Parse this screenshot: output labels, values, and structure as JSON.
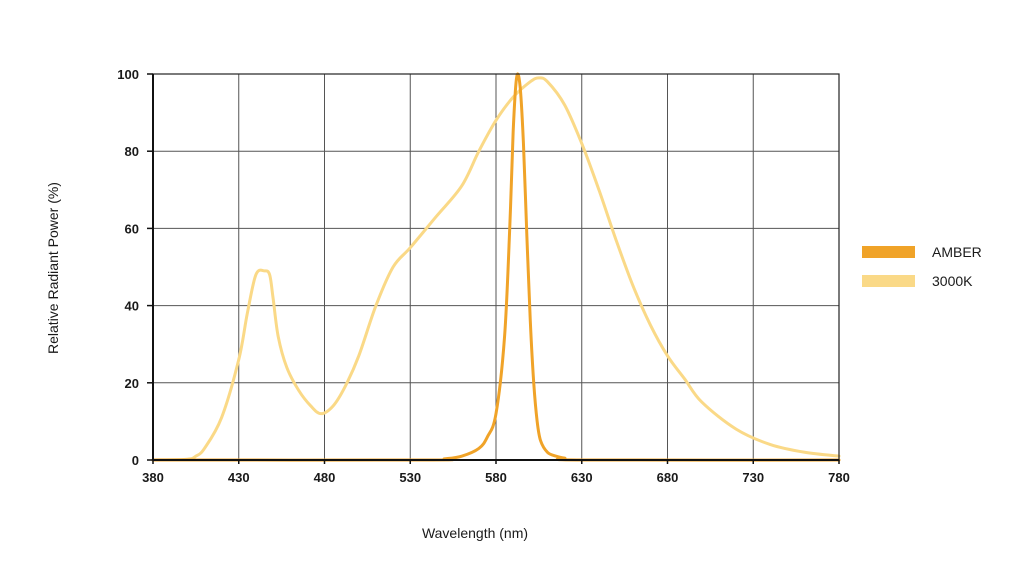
{
  "chart_data": {
    "type": "line",
    "xlabel": "Wavelength (nm)",
    "ylabel": "Relative Radiant Power (%)",
    "xlim": [
      380,
      780
    ],
    "ylim": [
      0,
      100
    ],
    "x_ticks": [
      380,
      430,
      480,
      530,
      580,
      630,
      680,
      730,
      780
    ],
    "y_ticks": [
      0,
      20,
      40,
      60,
      80,
      100
    ],
    "grid": true,
    "legend_position": "right",
    "series": [
      {
        "name": "AMBER",
        "color": "#f0a328",
        "x": [
          380,
          540,
          550,
          560,
          570,
          575,
          580,
          585,
          588,
          590,
          592,
          594,
          596,
          598,
          600,
          602,
          604,
          606,
          610,
          615,
          620,
          630,
          780
        ],
        "y": [
          0,
          0,
          0.3,
          1,
          3,
          6,
          12,
          32,
          60,
          85,
          99,
          97,
          82,
          58,
          36,
          20,
          10,
          5,
          2,
          1,
          0.5,
          0,
          0
        ]
      },
      {
        "name": "3000K",
        "color": "#fad987",
        "x": [
          380,
          400,
          405,
          410,
          420,
          430,
          435,
          440,
          445,
          448,
          450,
          453,
          458,
          465,
          472,
          478,
          485,
          492,
          500,
          510,
          520,
          530,
          545,
          560,
          570,
          580,
          590,
          600,
          605,
          610,
          620,
          630,
          640,
          650,
          660,
          670,
          680,
          690,
          700,
          720,
          740,
          760,
          780
        ],
        "y": [
          0,
          0.2,
          1,
          3,
          11,
          26,
          38,
          48,
          49,
          48,
          42,
          32,
          24,
          18,
          14,
          12,
          14,
          19,
          27,
          40,
          50,
          55,
          63,
          71,
          80,
          88,
          94,
          98,
          99,
          98,
          92,
          82,
          70,
          57,
          45,
          35,
          27,
          21,
          15,
          8,
          4,
          2,
          1
        ]
      }
    ]
  }
}
